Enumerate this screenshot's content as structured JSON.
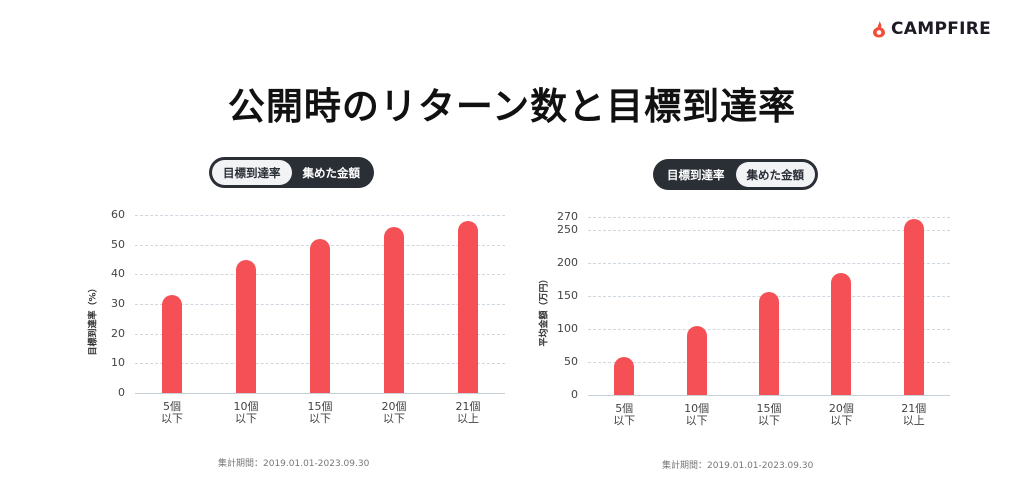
{
  "brand": {
    "name": "CAMPFIRE",
    "accent": "#f55056"
  },
  "title": "公開時のリターン数と目標到達率",
  "charts": [
    {
      "toggle": {
        "options": [
          "目標到達率",
          "集めた金額"
        ],
        "active_index": 0
      },
      "ylabel": "目標到達率（%）",
      "footnote": "集計期間：2019.01.01-2023.09.30"
    },
    {
      "toggle": {
        "options": [
          "目標到達率",
          "集めた金額"
        ],
        "active_index": 1
      },
      "ylabel": "平均金額（万円）",
      "footnote": "集計期間：2019.01.01-2023.09.30"
    }
  ],
  "chart_data": [
    {
      "type": "bar",
      "title": "",
      "categories": [
        "5個以下",
        "10個以下",
        "15個以下",
        "20個以下",
        "21個以上"
      ],
      "category_lines": [
        [
          "5個",
          "以下"
        ],
        [
          "10個",
          "以下"
        ],
        [
          "15個",
          "以下"
        ],
        [
          "20個",
          "以下"
        ],
        [
          "21個",
          "以上"
        ]
      ],
      "values": [
        33,
        45,
        52,
        56,
        58
      ],
      "xlabel": "",
      "ylabel": "目標到達率（%）",
      "ylim": [
        0,
        60
      ],
      "yticks": [
        0,
        10,
        20,
        30,
        40,
        50,
        60
      ],
      "grid": true,
      "bar_color": "#f55056"
    },
    {
      "type": "bar",
      "title": "",
      "categories": [
        "5個以下",
        "10個以下",
        "15個以下",
        "20個以下",
        "21個以上"
      ],
      "category_lines": [
        [
          "5個",
          "以下"
        ],
        [
          "10個",
          "以下"
        ],
        [
          "15個",
          "以下"
        ],
        [
          "20個",
          "以下"
        ],
        [
          "21個",
          "以上"
        ]
      ],
      "values": [
        58,
        105,
        156,
        185,
        267
      ],
      "xlabel": "",
      "ylabel": "平均金額（万円）",
      "ylim": [
        0,
        270
      ],
      "yticks": [
        0,
        50,
        100,
        150,
        200,
        250,
        270
      ],
      "grid": true,
      "bar_color": "#f55056"
    }
  ]
}
